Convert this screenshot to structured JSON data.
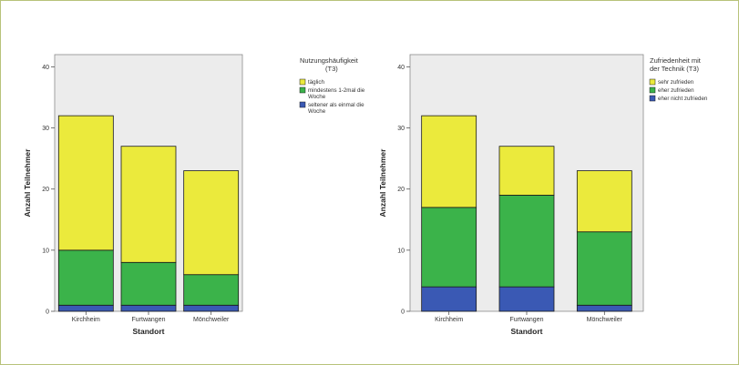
{
  "chart_data": [
    {
      "type": "bar",
      "stacked": true,
      "categories": [
        "Kirchheim",
        "Furtwangen",
        "Mönchweiler"
      ],
      "xlabel": "Standort",
      "ylabel": "Anzahl Teilnehmer",
      "ylim": [
        0,
        42
      ],
      "yticks": [
        0,
        10,
        20,
        30,
        40
      ],
      "grid": false,
      "legend_title": [
        "Nutzungshäufigkeit",
        "(T3)"
      ],
      "legend_placement": "top-right outside",
      "series": [
        {
          "name": [
            "seltener als einmal die",
            "Woche"
          ],
          "color": "#3a59b4",
          "values": [
            1,
            1,
            1
          ]
        },
        {
          "name": [
            "mindestens 1-2mal die",
            "Woche"
          ],
          "color": "#3bb34a",
          "values": [
            9,
            7,
            5
          ]
        },
        {
          "name": [
            "täglich"
          ],
          "color": "#ebea3c",
          "values": [
            22,
            19,
            17
          ]
        }
      ]
    },
    {
      "type": "bar",
      "stacked": true,
      "categories": [
        "Kirchheim",
        "Furtwangen",
        "Mönchweiler"
      ],
      "xlabel": "Standort",
      "ylabel": "Anzahl Teilnehmer",
      "ylim": [
        0,
        42
      ],
      "yticks": [
        0,
        10,
        20,
        30,
        40
      ],
      "grid": false,
      "legend_title": [
        "Zufriedenheit mit",
        "der Technik (T3)"
      ],
      "legend_placement": "top-right outside",
      "series": [
        {
          "name": [
            "eher nicht zufrieden"
          ],
          "color": "#3a59b4",
          "values": [
            4,
            4,
            1
          ]
        },
        {
          "name": [
            "eher zufrieden"
          ],
          "color": "#3bb34a",
          "values": [
            13,
            15,
            12
          ]
        },
        {
          "name": [
            "sehr zufrieden"
          ],
          "color": "#ebea3c",
          "values": [
            15,
            8,
            10
          ]
        }
      ]
    }
  ],
  "colors": {
    "frame_border": "#b8c27a",
    "plot_background": "#ececec",
    "bar_outline": "#1a1a1a"
  }
}
